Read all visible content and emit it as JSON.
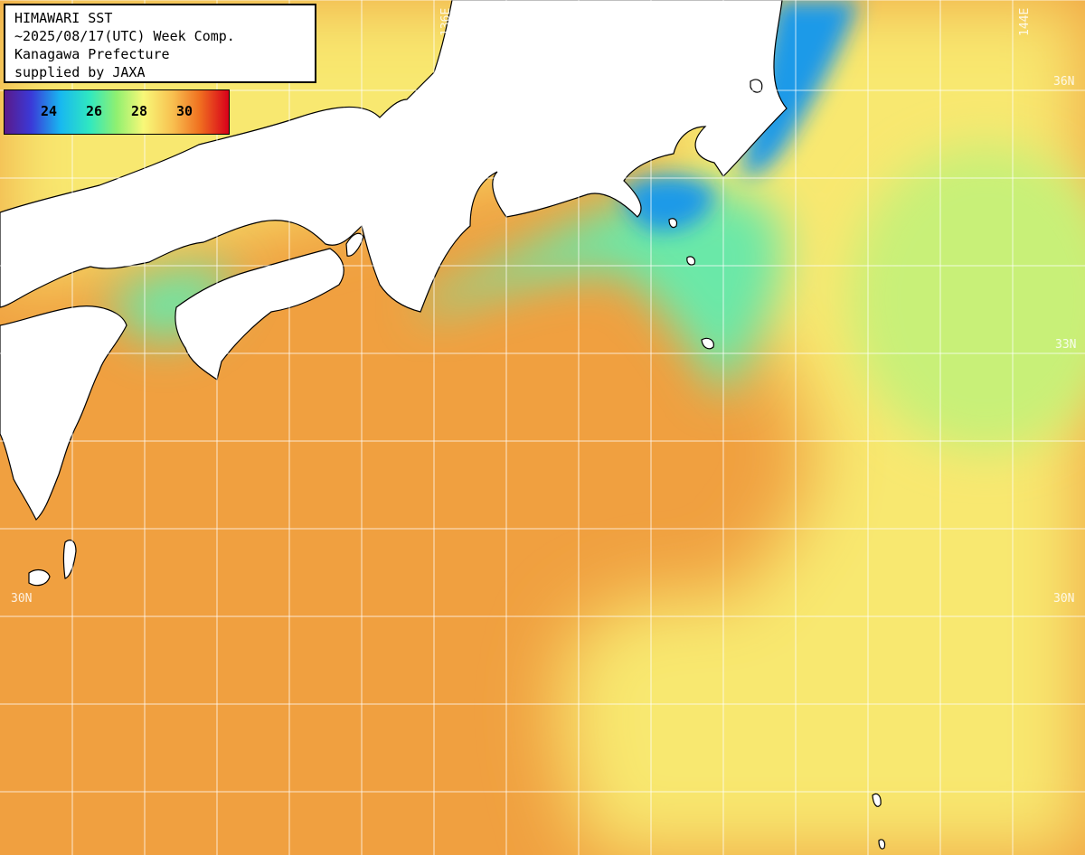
{
  "info": {
    "line1": "HIMAWARI SST",
    "line2": "~2025/08/17(UTC) Week Comp.",
    "line3": "Kanagawa Prefecture",
    "line4": "supplied by JAXA"
  },
  "legend": {
    "ticks": [
      "24",
      "26",
      "28",
      "30"
    ],
    "range_min_celsius": 22,
    "range_max_celsius": 32
  },
  "grid_labels": {
    "lon_136": "136E",
    "lon_144": "144E",
    "lat_36": "36N",
    "lat_33": "33N",
    "lat_30_left": "30N",
    "lat_30_right": "30N"
  },
  "colors": {
    "land": "#ffffff",
    "coastline": "#000000",
    "gridline": "#ffffff",
    "sst_cold": "#1a9ae8",
    "sst_cool": "#6ae8a8",
    "sst_mid": "#c8f078",
    "sst_warm": "#f8e870",
    "sst_hot": "#f0a040",
    "sst_hottest": "#e87828"
  }
}
